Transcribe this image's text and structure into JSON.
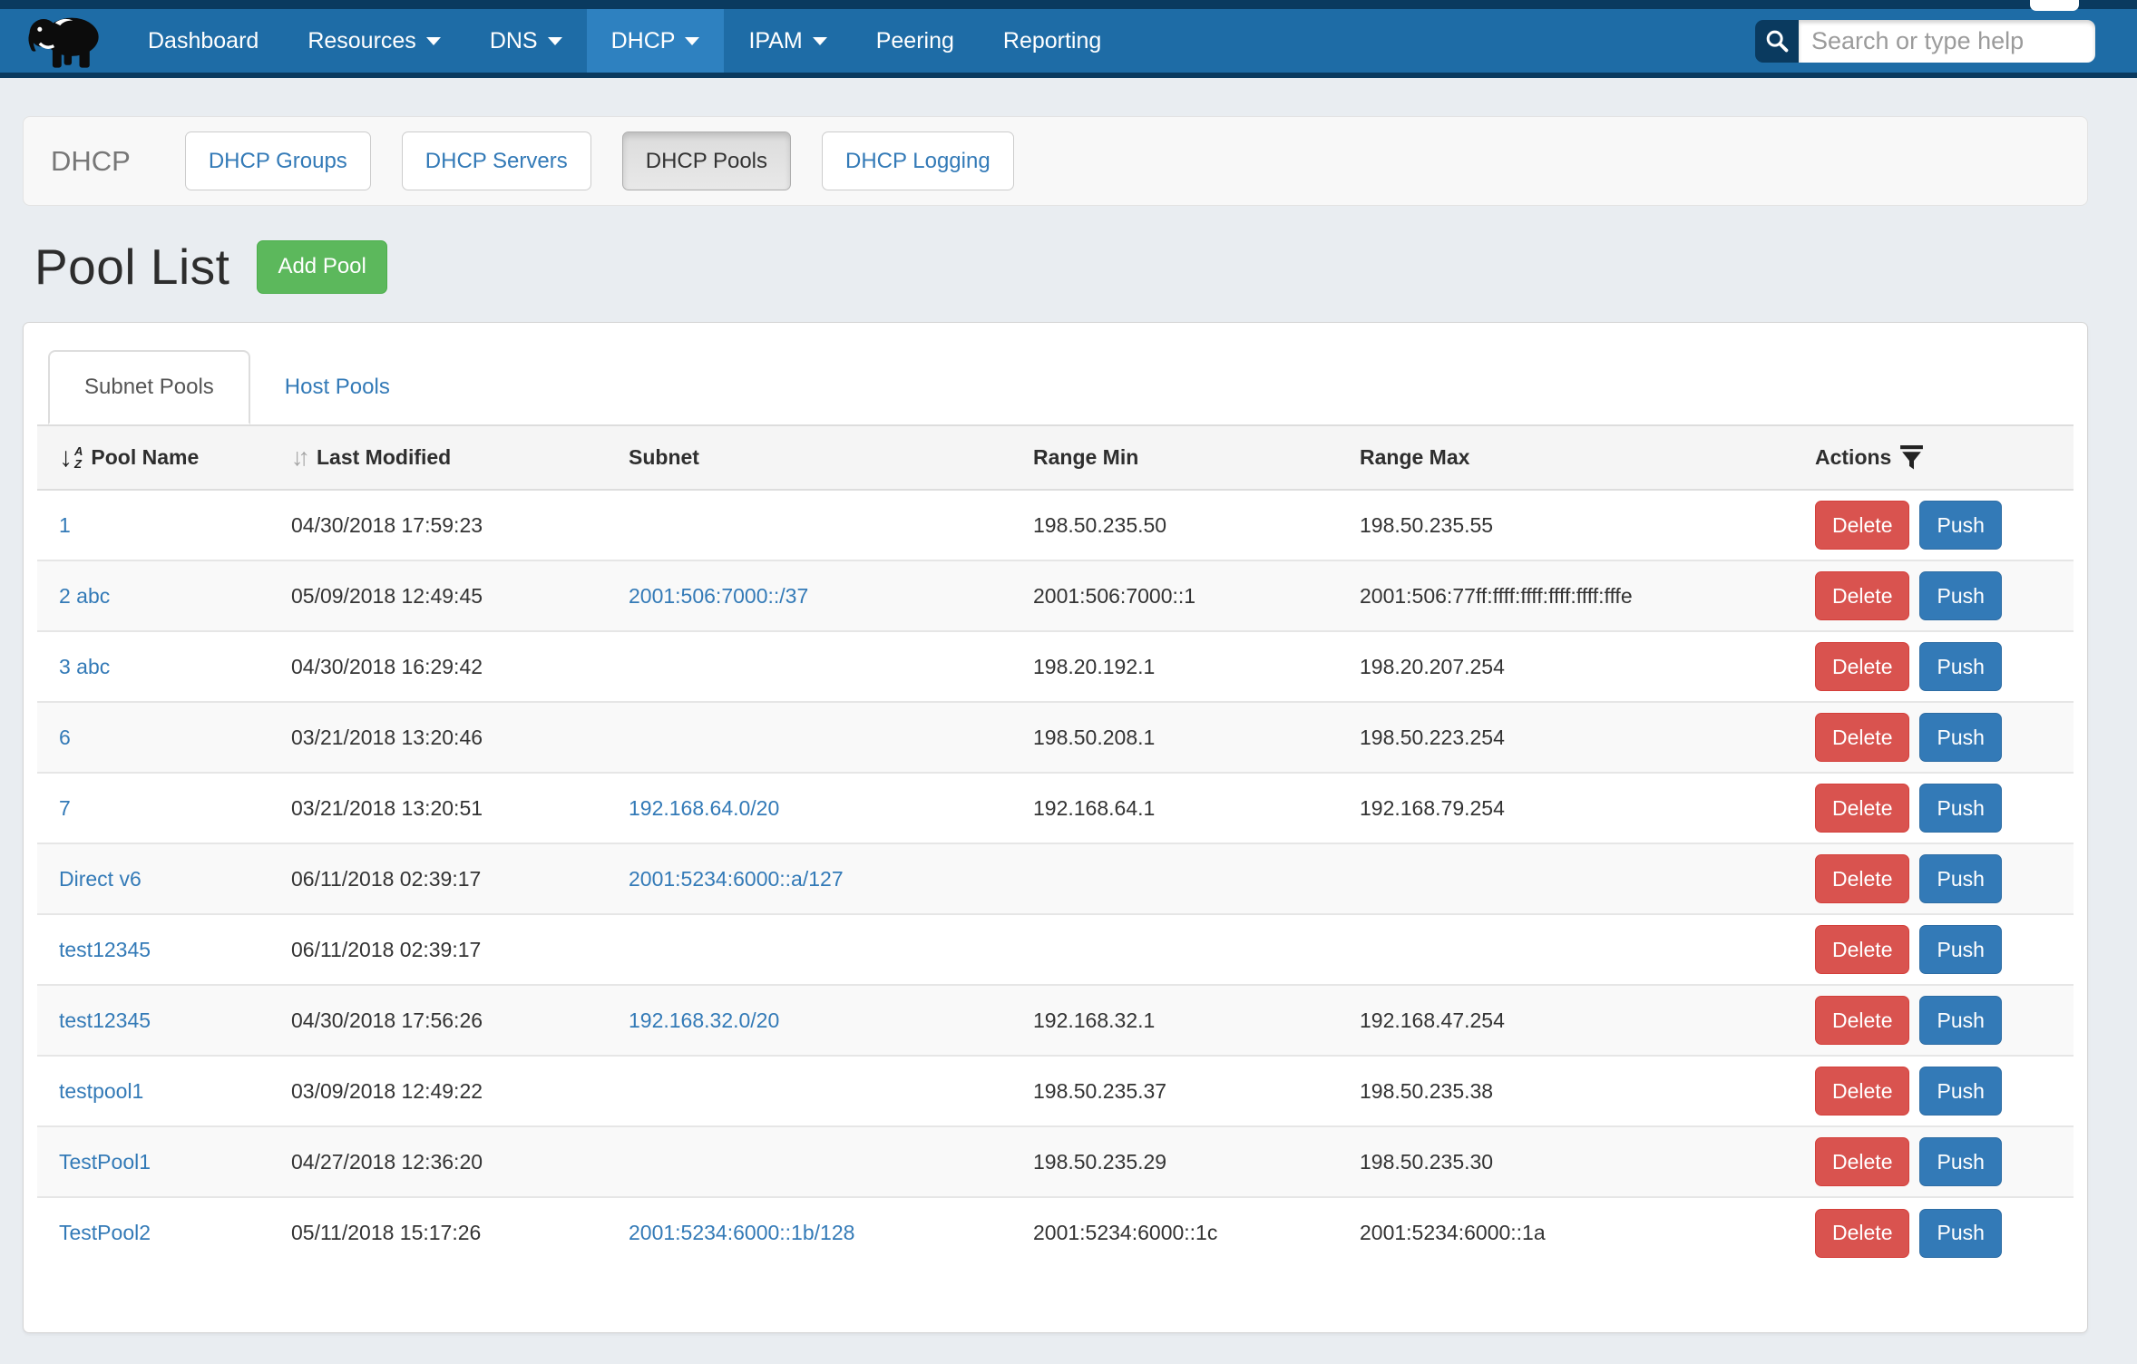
{
  "colors": {
    "navy": "#0a3a5f",
    "blue": "#1e6ca6",
    "blueactive": "#2e81c0",
    "pagebg": "#e9edf1",
    "link": "#337ab7",
    "green": "#5cb85c",
    "red": "#d9534f",
    "push": "#337ab7"
  },
  "navbar": {
    "logo": "mammoth-logo",
    "items": [
      {
        "label": "Dashboard",
        "caret": false,
        "active": false
      },
      {
        "label": "Resources",
        "caret": true,
        "active": false
      },
      {
        "label": "DNS",
        "caret": true,
        "active": false
      },
      {
        "label": "DHCP",
        "caret": true,
        "active": true
      },
      {
        "label": "IPAM",
        "caret": true,
        "active": false
      },
      {
        "label": "Peering",
        "caret": false,
        "active": false
      },
      {
        "label": "Reporting",
        "caret": false,
        "active": false
      }
    ],
    "search": {
      "placeholder": "Search or type help",
      "value": "",
      "icon": "search-icon"
    }
  },
  "subnav": {
    "brand": "DHCP",
    "buttons": [
      {
        "label": "DHCP Groups",
        "active": false
      },
      {
        "label": "DHCP Servers",
        "active": false
      },
      {
        "label": "DHCP Pools",
        "active": true
      },
      {
        "label": "DHCP Logging",
        "active": false
      }
    ]
  },
  "page": {
    "title": "Pool List",
    "add_button": "Add Pool"
  },
  "tabs": [
    {
      "label": "Subnet Pools",
      "active": true
    },
    {
      "label": "Host Pools",
      "active": false
    }
  ],
  "table": {
    "columns": [
      {
        "label": "Pool Name",
        "icon": "sort-alpha-desc-icon"
      },
      {
        "label": "Last Modified",
        "icon": "sort-updown-icon"
      },
      {
        "label": "Subnet",
        "icon": null
      },
      {
        "label": "Range Min",
        "icon": null
      },
      {
        "label": "Range Max",
        "icon": null
      },
      {
        "label": "Actions",
        "icon": "filter-funnel-icon"
      }
    ],
    "row_actions": [
      "Delete",
      "Push"
    ],
    "rows": [
      {
        "name": "1",
        "modified": "04/30/2018 17:59:23",
        "subnet": "",
        "range_min": "198.50.235.50",
        "range_max": "198.50.235.55"
      },
      {
        "name": "2 abc",
        "modified": "05/09/2018 12:49:45",
        "subnet": "2001:506:7000::/37",
        "range_min": "2001:506:7000::1",
        "range_max": "2001:506:77ff:ffff:ffff:ffff:ffff:fffe"
      },
      {
        "name": "3 abc",
        "modified": "04/30/2018 16:29:42",
        "subnet": "",
        "range_min": "198.20.192.1",
        "range_max": "198.20.207.254"
      },
      {
        "name": "6",
        "modified": "03/21/2018 13:20:46",
        "subnet": "",
        "range_min": "198.50.208.1",
        "range_max": "198.50.223.254"
      },
      {
        "name": "7",
        "modified": "03/21/2018 13:20:51",
        "subnet": "192.168.64.0/20",
        "range_min": "192.168.64.1",
        "range_max": "192.168.79.254"
      },
      {
        "name": "Direct v6",
        "modified": "06/11/2018 02:39:17",
        "subnet": "2001:5234:6000::a/127",
        "range_min": "",
        "range_max": ""
      },
      {
        "name": "test12345",
        "modified": "06/11/2018 02:39:17",
        "subnet": "",
        "range_min": "",
        "range_max": ""
      },
      {
        "name": "test12345",
        "modified": "04/30/2018 17:56:26",
        "subnet": "192.168.32.0/20",
        "range_min": "192.168.32.1",
        "range_max": "192.168.47.254"
      },
      {
        "name": "testpool1",
        "modified": "03/09/2018 12:49:22",
        "subnet": "",
        "range_min": "198.50.235.37",
        "range_max": "198.50.235.38"
      },
      {
        "name": "TestPool1",
        "modified": "04/27/2018 12:36:20",
        "subnet": "",
        "range_min": "198.50.235.29",
        "range_max": "198.50.235.30"
      },
      {
        "name": "TestPool2",
        "modified": "05/11/2018 15:17:26",
        "subnet": "2001:5234:6000::1b/128",
        "range_min": "2001:5234:6000::1c",
        "range_max": "2001:5234:6000::1a"
      }
    ]
  }
}
